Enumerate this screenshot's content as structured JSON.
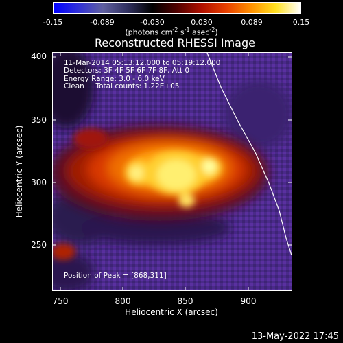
{
  "colorbar": {
    "ticks": [
      "-0.15",
      "-0.089",
      "-0.030",
      "0.030",
      "0.089",
      "0.15"
    ],
    "units_prefix": "(photons cm",
    "units_exp1": "-2",
    "units_mid": " s",
    "units_exp2": "-1",
    "units_mid2": " asec",
    "units_exp3": "-2",
    "units_suffix": ")",
    "gradient_stops": [
      "#0000ff",
      "#3030d8",
      "#6060a0",
      "#303060",
      "#000000",
      "#500000",
      "#b01000",
      "#e84000",
      "#ff9000",
      "#ffe020",
      "#ffffff"
    ]
  },
  "title": "Reconstructed RHESSI Image",
  "info": {
    "time_range": "11-Mar-2014 05:13:12.000 to 05:19:12.000",
    "detectors": "Detectors: 3F 4F 5F 6F 7F 8F, Att 0",
    "energy": "Energy Range: 3.0 - 6.0 keV",
    "clean": "Clean     Total counts: 1.22E+05",
    "peak": "Position of Peak = [868,311]"
  },
  "axes": {
    "x_ticks": [
      "750",
      "800",
      "850",
      "900"
    ],
    "y_ticks": [
      "400",
      "350",
      "300",
      "250"
    ],
    "xlabel": "Heliocentric X (arcsec)",
    "ylabel": "Heliocentric Y (arcsec)"
  },
  "datestamp": "13-May-2022 17:45",
  "colors": {
    "background": "#000000",
    "foreground": "#ffffff",
    "purple": "#5a2a9a"
  }
}
